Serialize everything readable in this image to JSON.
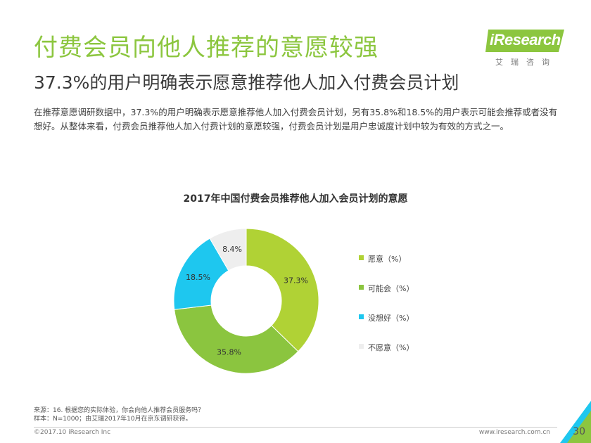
{
  "header": {
    "title": "付费会员向他人推荐的意愿较强",
    "subtitle": "37.3%的用户明确表示愿意推荐他人加入付费会员计划",
    "description": "在推荐意愿调研数据中，37.3%的用户明确表示愿意推荐他人加入付费会员计划，另有35.8%和18.5%的用户表示可能会推荐或者没有想好。从整体来看，付费会员推荐他人加入付费计划的意愿较强，付费会员计划是用户忠诚度计划中较为有效的方式之一。"
  },
  "logo": {
    "name": "iResearch",
    "sub": "艾瑞咨询"
  },
  "chart_data": {
    "type": "pie",
    "title": "2017年中国付费会员推荐他人加入会员计划的意愿",
    "categories": [
      "愿意（%）",
      "可能会（%）",
      "没想好（%）",
      "不愿意（%）"
    ],
    "values": [
      37.3,
      35.8,
      18.5,
      8.4
    ],
    "labels": [
      "37.3%",
      "35.8%",
      "18.5%",
      "8.4%"
    ],
    "colors": [
      "#b0d235",
      "#8bc53f",
      "#1ec7ef",
      "#eeeeee"
    ],
    "legend_position": "right",
    "donut": true
  },
  "footer": {
    "source_line1": "来源：16. 根据您的实际体验，你会向他人推荐会员服务吗？",
    "source_line2": "样本：N=1000；由艾瑞2017年10月在京东调研获得。",
    "copyright": "©2017.10 iResearch Inc",
    "website": "www.iresearch.com.cn",
    "page": "30"
  },
  "colors": {
    "accent": "#8cc63f",
    "corner": "#1ec7ef"
  }
}
